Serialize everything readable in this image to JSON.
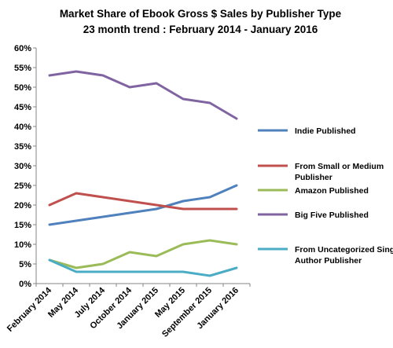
{
  "chart_data": {
    "type": "line",
    "title": "Market Share of Ebook Gross $ Sales by Publisher Type",
    "subtitle": "23 month trend : February 2014 - January 2016",
    "xlabel": "",
    "ylabel": "",
    "categories": [
      "February 2014",
      "May 2014",
      "July 2014",
      "October 2014",
      "January 2015",
      "May 2015",
      "September 2015",
      "January 2016"
    ],
    "y_ticks": [
      "0%",
      "5%",
      "10%",
      "15%",
      "20%",
      "25%",
      "30%",
      "35%",
      "40%",
      "45%",
      "50%",
      "55%",
      "60%"
    ],
    "ylim": [
      0,
      60
    ],
    "y_unit": "%",
    "grid": false,
    "legend_position": "right",
    "series": [
      {
        "name": "Indie Published",
        "legend_lines": [
          "Indie Published"
        ],
        "color": "#4F81BD",
        "values": [
          15,
          16,
          17,
          18,
          19,
          21,
          22,
          25
        ]
      },
      {
        "name": "From Small or Medium Publisher",
        "legend_lines": [
          "From Small or Medium",
          "Publisher"
        ],
        "color": "#C0504D",
        "values": [
          20,
          23,
          22,
          21,
          20,
          19,
          19,
          19
        ]
      },
      {
        "name": "Amazon Published",
        "legend_lines": [
          "Amazon Published"
        ],
        "color": "#9BBB59",
        "values": [
          6,
          4,
          5,
          8,
          7,
          10,
          11,
          10
        ]
      },
      {
        "name": "Big Five Published",
        "legend_lines": [
          "Big Five Published"
        ],
        "color": "#8064A2",
        "values": [
          53,
          54,
          53,
          50,
          51,
          47,
          46,
          42
        ]
      },
      {
        "name": "From Uncategorized Single-Author Publisher",
        "legend_lines": [
          "From Uncategorized Single-",
          "Author Publisher"
        ],
        "color": "#4BACC6",
        "values": [
          6,
          3,
          3,
          3,
          3,
          3,
          2,
          4
        ]
      }
    ]
  }
}
